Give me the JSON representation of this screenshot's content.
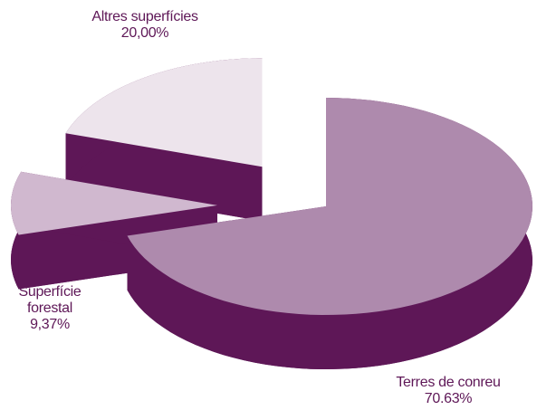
{
  "chart_data": {
    "type": "pie3d",
    "categories": [
      "Terres de conreu",
      "Superfície forestal",
      "Altres superfícies"
    ],
    "values": [
      70.63,
      9.37,
      20.0
    ],
    "value_labels": [
      "70.63%",
      "9,37%",
      "20,00%"
    ],
    "colors": [
      "#ae8aad",
      "#d0b8cf",
      "#ede4ec"
    ],
    "side_color": "#5e1757"
  }
}
